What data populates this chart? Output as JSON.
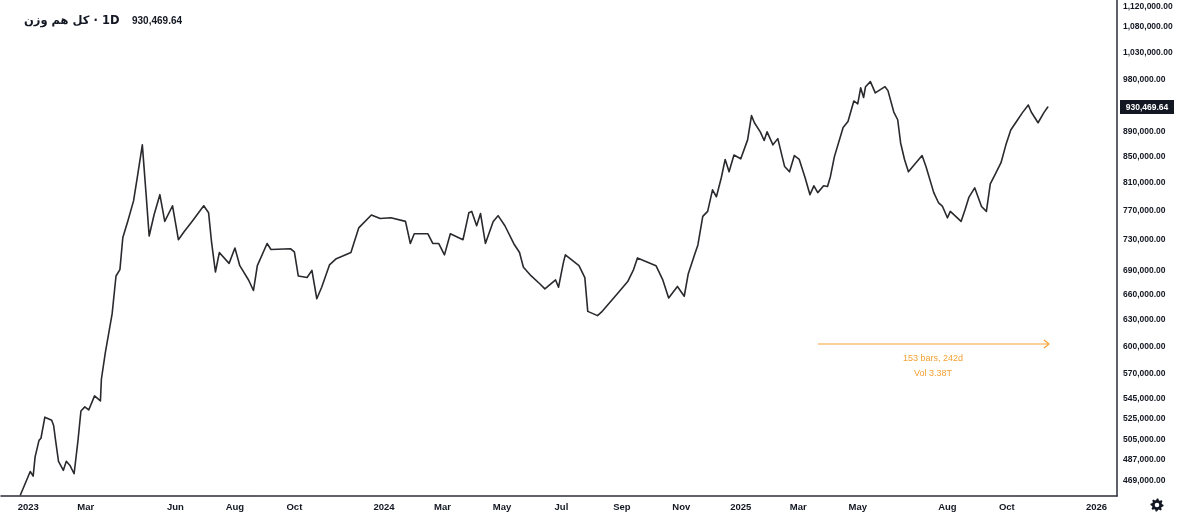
{
  "chart_data": {
    "type": "line",
    "title": "کل هم وزن · 1D",
    "subtitle": "930,469.64",
    "x": [
      "2022-12-24",
      "2023-01-03",
      "2023-01-06",
      "2023-01-08",
      "2023-01-12",
      "2023-01-14",
      "2023-01-18",
      "2023-01-25",
      "2023-01-27",
      "2023-01-29",
      "2023-02-01",
      "2023-02-06",
      "2023-02-09",
      "2023-02-13",
      "2023-02-17",
      "2023-02-21",
      "2023-02-24",
      "2023-02-28",
      "2023-03-04",
      "2023-03-10",
      "2023-03-16",
      "2023-03-17",
      "2023-03-21",
      "2023-03-28",
      "2023-04-01",
      "2023-04-05",
      "2023-04-08",
      "2023-04-13",
      "2023-04-19",
      "2023-04-23",
      "2023-04-28",
      "2023-05-02",
      "2023-05-05",
      "2023-05-10",
      "2023-05-16",
      "2023-05-21",
      "2023-05-29",
      "2023-06-04",
      "2023-06-10",
      "2023-06-18",
      "2023-06-30",
      "2023-07-05",
      "2023-07-08",
      "2023-07-12",
      "2023-07-16",
      "2023-07-26",
      "2023-08-01",
      "2023-08-06",
      "2023-08-15",
      "2023-08-20",
      "2023-08-24",
      "2023-09-03",
      "2023-09-07",
      "2023-09-27",
      "2023-10-01",
      "2023-10-05",
      "2023-10-14",
      "2023-10-19",
      "2023-10-24",
      "2023-10-29",
      "2023-11-06",
      "2023-11-13",
      "2023-11-28",
      "2023-12-06",
      "2023-12-19",
      "2023-12-28",
      "2024-01-08",
      "2024-01-23",
      "2024-01-28",
      "2024-02-01",
      "2024-02-15",
      "2024-02-20",
      "2024-02-26",
      "2024-03-03",
      "2024-03-09",
      "2024-03-22",
      "2024-03-28",
      "2024-03-31",
      "2024-04-05",
      "2024-04-09",
      "2024-04-14",
      "2024-04-22",
      "2024-04-27",
      "2024-05-04",
      "2024-05-13",
      "2024-05-19",
      "2024-05-23",
      "2024-05-31",
      "2024-06-09",
      "2024-06-14",
      "2024-06-25",
      "2024-06-28",
      "2024-07-03",
      "2024-07-05",
      "2024-07-19",
      "2024-07-25",
      "2024-07-28",
      "2024-08-07",
      "2024-08-11",
      "2024-08-28",
      "2024-09-07",
      "2024-09-13",
      "2024-09-17",
      "2024-10-06",
      "2024-10-13",
      "2024-10-19",
      "2024-10-28",
      "2024-11-04",
      "2024-11-08",
      "2024-11-14",
      "2024-11-18",
      "2024-11-23",
      "2024-11-28",
      "2024-12-03",
      "2024-12-07",
      "2024-12-12",
      "2024-12-16",
      "2024-12-20",
      "2024-12-25",
      "2025-01-01",
      "2025-01-08",
      "2025-01-12",
      "2025-01-15",
      "2025-01-21",
      "2025-01-25",
      "2025-01-28",
      "2025-02-03",
      "2025-02-08",
      "2025-02-15",
      "2025-02-20",
      "2025-02-25",
      "2025-03-02",
      "2025-03-08",
      "2025-03-13",
      "2025-03-17",
      "2025-03-21",
      "2025-03-27",
      "2025-03-31",
      "2025-04-03",
      "2025-04-07",
      "2025-04-16",
      "2025-04-21",
      "2025-04-27",
      "2025-05-01",
      "2025-05-04",
      "2025-05-07",
      "2025-05-09",
      "2025-05-14",
      "2025-05-19",
      "2025-05-29",
      "2025-06-01",
      "2025-06-07",
      "2025-06-11",
      "2025-06-14",
      "2025-06-18",
      "2025-06-22",
      "2025-07-06",
      "2025-07-10",
      "2025-07-18",
      "2025-07-23",
      "2025-07-27",
      "2025-08-01",
      "2025-08-04",
      "2025-08-15",
      "2025-08-19",
      "2025-08-23",
      "2025-08-29",
      "2025-09-05",
      "2025-09-10",
      "2025-09-14",
      "2025-09-19",
      "2025-09-25",
      "2025-09-30",
      "2025-10-05",
      "2025-10-17",
      "2025-10-23",
      "2025-10-26",
      "2025-11-02",
      "2025-11-08",
      "2025-11-12"
    ],
    "values": [
      456000,
      476000,
      472000,
      489000,
      504000,
      506000,
      526000,
      523000,
      518000,
      504000,
      485000,
      477000,
      485000,
      481000,
      474000,
      504000,
      532000,
      536000,
      533000,
      547000,
      542000,
      564000,
      592000,
      636000,
      682000,
      690000,
      732000,
      754000,
      783000,
      819000,
      868000,
      790000,
      734000,
      763000,
      792000,
      754000,
      776000,
      729000,
      740000,
      754000,
      776000,
      766000,
      726000,
      687000,
      712000,
      698000,
      718000,
      695000,
      677000,
      664000,
      695000,
      724000,
      716000,
      717000,
      713000,
      682000,
      680000,
      689000,
      654000,
      668000,
      696000,
      704000,
      712000,
      745000,
      763000,
      758000,
      759000,
      754000,
      724000,
      737000,
      737000,
      724000,
      724000,
      709000,
      737000,
      729000,
      766000,
      768000,
      748000,
      765000,
      724000,
      754000,
      762000,
      748000,
      724000,
      712000,
      693000,
      682000,
      672000,
      666000,
      677000,
      668000,
      699000,
      709000,
      695000,
      680000,
      639000,
      634000,
      638000,
      661000,
      675000,
      690000,
      705000,
      695000,
      677000,
      655000,
      669000,
      657000,
      684000,
      707000,
      722000,
      761000,
      768000,
      799000,
      789000,
      817000,
      845000,
      826000,
      852000,
      846000,
      876000,
      916000,
      904000,
      889000,
      875000,
      889000,
      868000,
      878000,
      834000,
      826000,
      851000,
      845000,
      817000,
      792000,
      805000,
      795000,
      805000,
      804000,
      819000,
      849000,
      896000,
      906000,
      941000,
      936000,
      964000,
      947000,
      966000,
      975000,
      955000,
      966000,
      959000,
      922000,
      909000,
      871000,
      845000,
      826000,
      851000,
      834000,
      795000,
      780000,
      775000,
      759000,
      768000,
      754000,
      770000,
      788000,
      802000,
      775000,
      768000,
      808000,
      822000,
      840000,
      868000,
      892000,
      921000,
      934000,
      922000,
      904000,
      921000,
      930469.64
    ],
    "color": "#2a2a2e",
    "xlim": [
      "2022-12-04",
      "2026-01-22"
    ],
    "xticks": [
      {
        "value": "2023-01-01",
        "label": "2023"
      },
      {
        "value": "2023-03-01",
        "label": "Mar"
      },
      {
        "value": "2023-06-01",
        "label": "Jun"
      },
      {
        "value": "2023-08-01",
        "label": "Aug"
      },
      {
        "value": "2023-10-01",
        "label": "Oct"
      },
      {
        "value": "2024-01-01",
        "label": "2024"
      },
      {
        "value": "2024-03-01",
        "label": "Mar"
      },
      {
        "value": "2024-05-01",
        "label": "May"
      },
      {
        "value": "2024-07-01",
        "label": "Jul"
      },
      {
        "value": "2024-09-01",
        "label": "Sep"
      },
      {
        "value": "2024-11-01",
        "label": "Nov"
      },
      {
        "value": "2025-01-01",
        "label": "2025"
      },
      {
        "value": "2025-03-01",
        "label": "Mar"
      },
      {
        "value": "2025-05-01",
        "label": "May"
      },
      {
        "value": "2025-08-01",
        "label": "Aug"
      },
      {
        "value": "2025-10-01",
        "label": "Oct"
      },
      {
        "value": "2026-01-01",
        "label": "2026"
      }
    ],
    "ylim": [
      455000,
      1133000
    ],
    "yticks": [
      {
        "value": 469000,
        "label": "469,000.00"
      },
      {
        "value": 487000,
        "label": "487,000.00"
      },
      {
        "value": 505000,
        "label": "505,000.00"
      },
      {
        "value": 525000,
        "label": "525,000.00"
      },
      {
        "value": 545000,
        "label": "545,000.00"
      },
      {
        "value": 570000,
        "label": "570,000.00"
      },
      {
        "value": 600000,
        "label": "600,000.00"
      },
      {
        "value": 630000,
        "label": "630,000.00"
      },
      {
        "value": 660000,
        "label": "660,000.00"
      },
      {
        "value": 690000,
        "label": "690,000.00"
      },
      {
        "value": 730000,
        "label": "730,000.00"
      },
      {
        "value": 770000,
        "label": "770,000.00"
      },
      {
        "value": 810000,
        "label": "810,000.00"
      },
      {
        "value": 850000,
        "label": "850,000.00"
      },
      {
        "value": 890000,
        "label": "890,000.00"
      },
      {
        "value": 980000,
        "label": "980,000.00"
      },
      {
        "value": 1030000,
        "label": "1,030,000.00"
      },
      {
        "value": 1080000,
        "label": "1,080,000.00"
      },
      {
        "value": 1120000,
        "label": "1,120,000.00"
      }
    ],
    "log": "y",
    "grid": false,
    "marker": "none",
    "line_style": "solid",
    "annotations": [
      "153 bars, 242d",
      "Vol 3.38T",
      "930,469.64"
    ]
  }
}
